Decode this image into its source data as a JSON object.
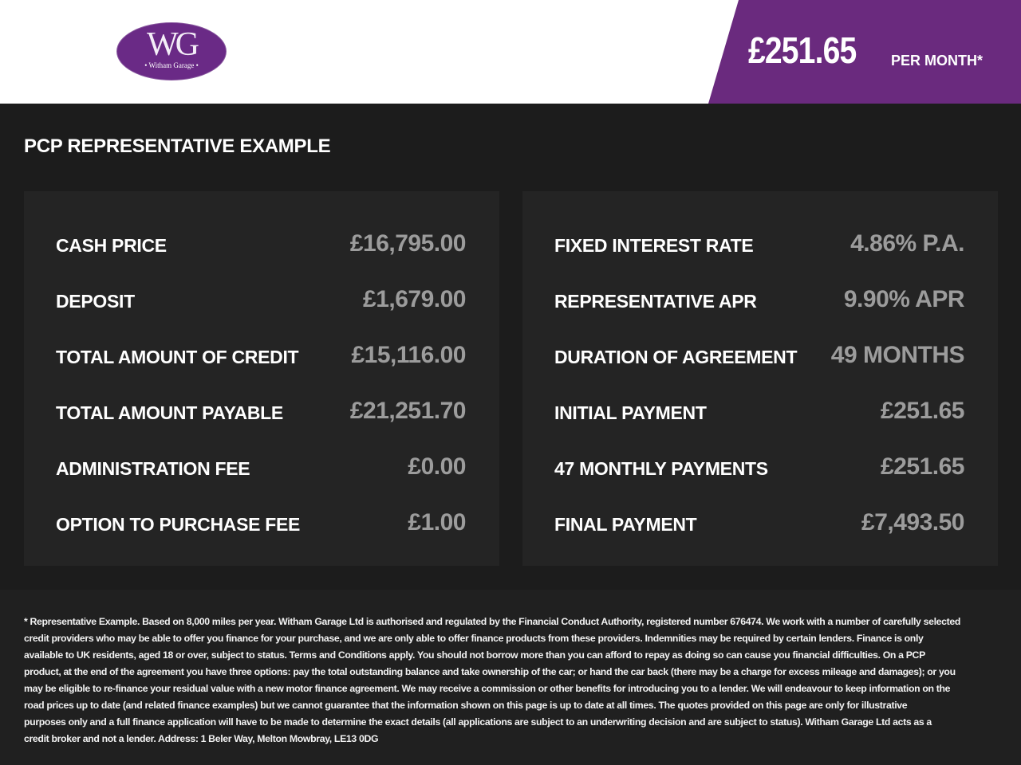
{
  "brand": {
    "logo_monogram": "WG",
    "logo_text": "• Witham Garage •",
    "accent": "#6a2a7e"
  },
  "header": {
    "price": "£251.65",
    "per": "PER MONTH*"
  },
  "title": "PCP REPRESENTATIVE EXAMPLE",
  "left": [
    {
      "label": "CASH PRICE",
      "value": "£16,795.00"
    },
    {
      "label": "DEPOSIT",
      "value": "£1,679.00"
    },
    {
      "label": "TOTAL AMOUNT OF CREDIT",
      "value": "£15,116.00"
    },
    {
      "label": "TOTAL AMOUNT PAYABLE",
      "value": "£21,251.70"
    },
    {
      "label": "ADMINISTRATION FEE",
      "value": "£0.00"
    },
    {
      "label": "OPTION TO PURCHASE FEE",
      "value": "£1.00"
    }
  ],
  "right": [
    {
      "label": "FIXED INTEREST RATE",
      "value": "4.86% P.A."
    },
    {
      "label": "REPRESENTATIVE APR",
      "value": "9.90% APR"
    },
    {
      "label": "DURATION OF AGREEMENT",
      "value": "49 MONTHS"
    },
    {
      "label": "INITIAL PAYMENT",
      "value": "£251.65"
    },
    {
      "label": "47 MONTHLY PAYMENTS",
      "value": "£251.65"
    },
    {
      "label": "FINAL PAYMENT",
      "value": "£7,493.50"
    }
  ],
  "disclaimer": [
    "* Representative Example. Based on 8,000 miles per year. Witham Garage Ltd is authorised and regulated by the Financial Conduct Authority, registered number 676474. We work with a number of carefully selected",
    "credit providers who may be able to offer you finance for your purchase, and we are only able to offer finance products from these providers. Indemnities may be required by certain lenders. Finance is only",
    "available to UK residents, aged 18 or over, subject to status. Terms and Conditions apply. You should not borrow more than you can afford to repay as doing so can cause you financial difficulties. On a PCP",
    "product, at the end of the agreement you have three options: pay the total outstanding balance and take ownership of the car; or hand the car back (there may be a charge for excess mileage and damages); or you",
    "may be eligible to re-finance your residual value with a new motor finance agreement. We may receive a commission or other benefits for introducing you to a lender. We will endeavour to keep information on the",
    "road prices up to date (and related finance examples) but we cannot guarantee that the information shown on this page is up to date at all times. The quotes provided on this page are only for illustrative",
    "purposes only and a full finance application will have to be made to determine the exact details (all applications are subject to an underwriting decision and are subject to status). Witham Garage Ltd acts as a",
    "credit broker and not a lender. Address: 1 Beler Way, Melton Mowbray, LE13 0DG"
  ]
}
